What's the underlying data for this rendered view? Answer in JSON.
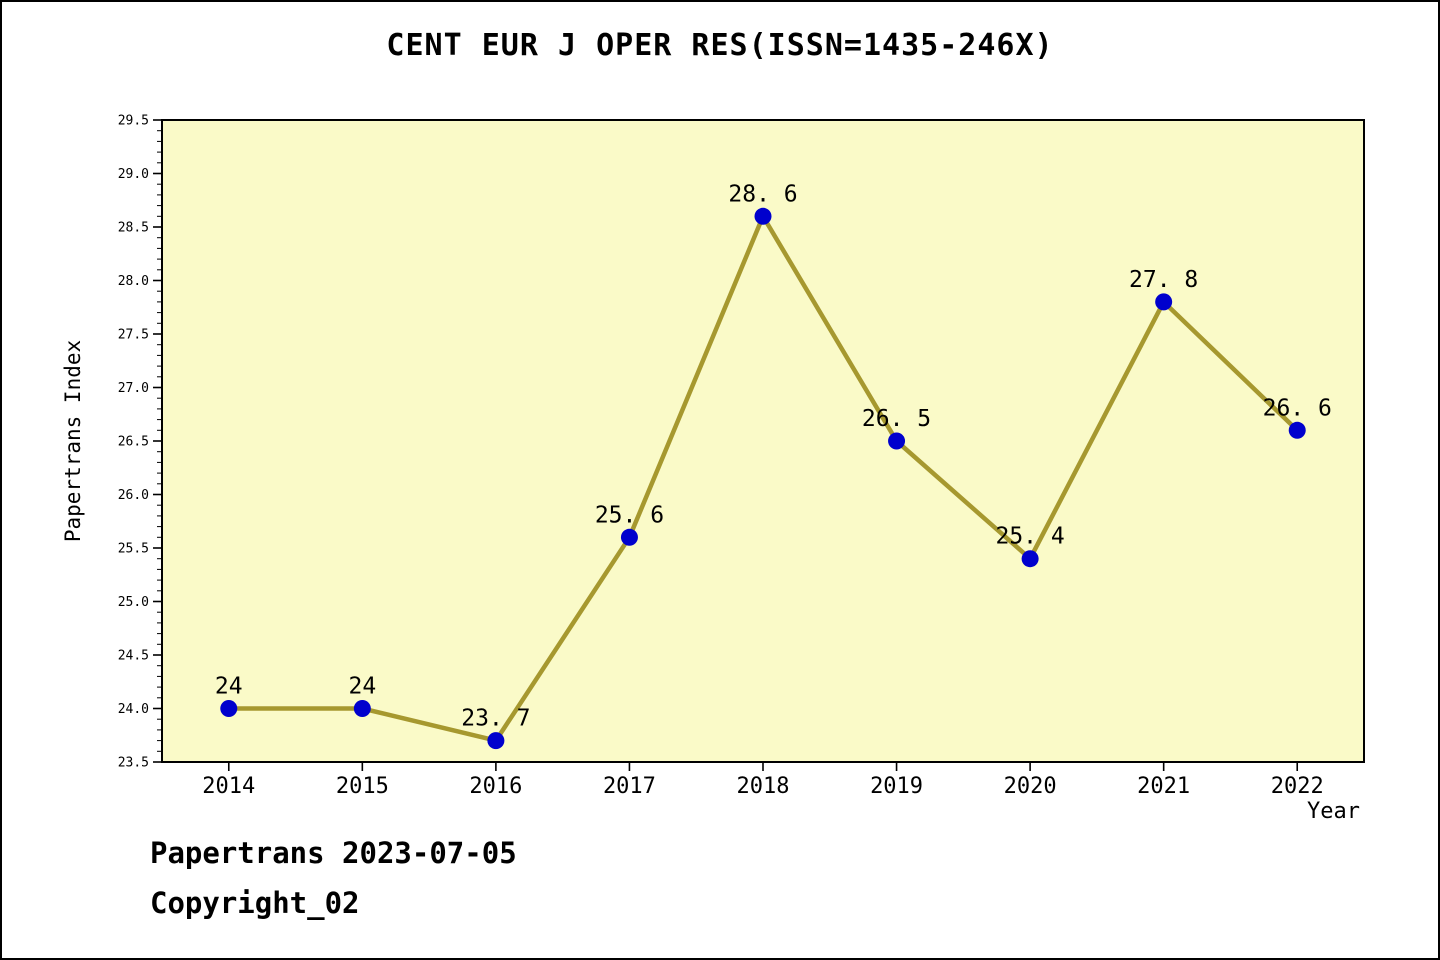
{
  "chart_data": {
    "type": "line",
    "title": "CENT EUR J OPER RES(ISSN=1435-246X)",
    "x_labels": [
      "2014",
      "2015",
      "2016",
      "2017",
      "2018",
      "2019",
      "2020",
      "2021",
      "2022"
    ],
    "series": [
      {
        "name": "Papertrans Index",
        "values": [
          24,
          24,
          23.7,
          25.6,
          28.6,
          26.5,
          25.4,
          27.8,
          26.6
        ]
      }
    ],
    "point_labels": [
      "24",
      "24",
      "23. 7",
      "25. 6",
      "28. 6",
      "26. 5",
      "25. 4",
      "27. 8",
      "26. 6"
    ],
    "xlabel": "Year",
    "ylabel": "Papertrans Index",
    "ylim": [
      23.5,
      29.5
    ],
    "y_tick_step": 0.5,
    "y_minor_tick_step": 0.1,
    "grid": false,
    "legend": "none",
    "colors": {
      "plot_bg": "#FAFAC8",
      "line": "#A6982F",
      "marker": "#0000CD",
      "frame": "#000000",
      "text": "#000000"
    }
  },
  "footer": {
    "line1": "Papertrans 2023-07-05",
    "line2": "Copyright_02"
  }
}
